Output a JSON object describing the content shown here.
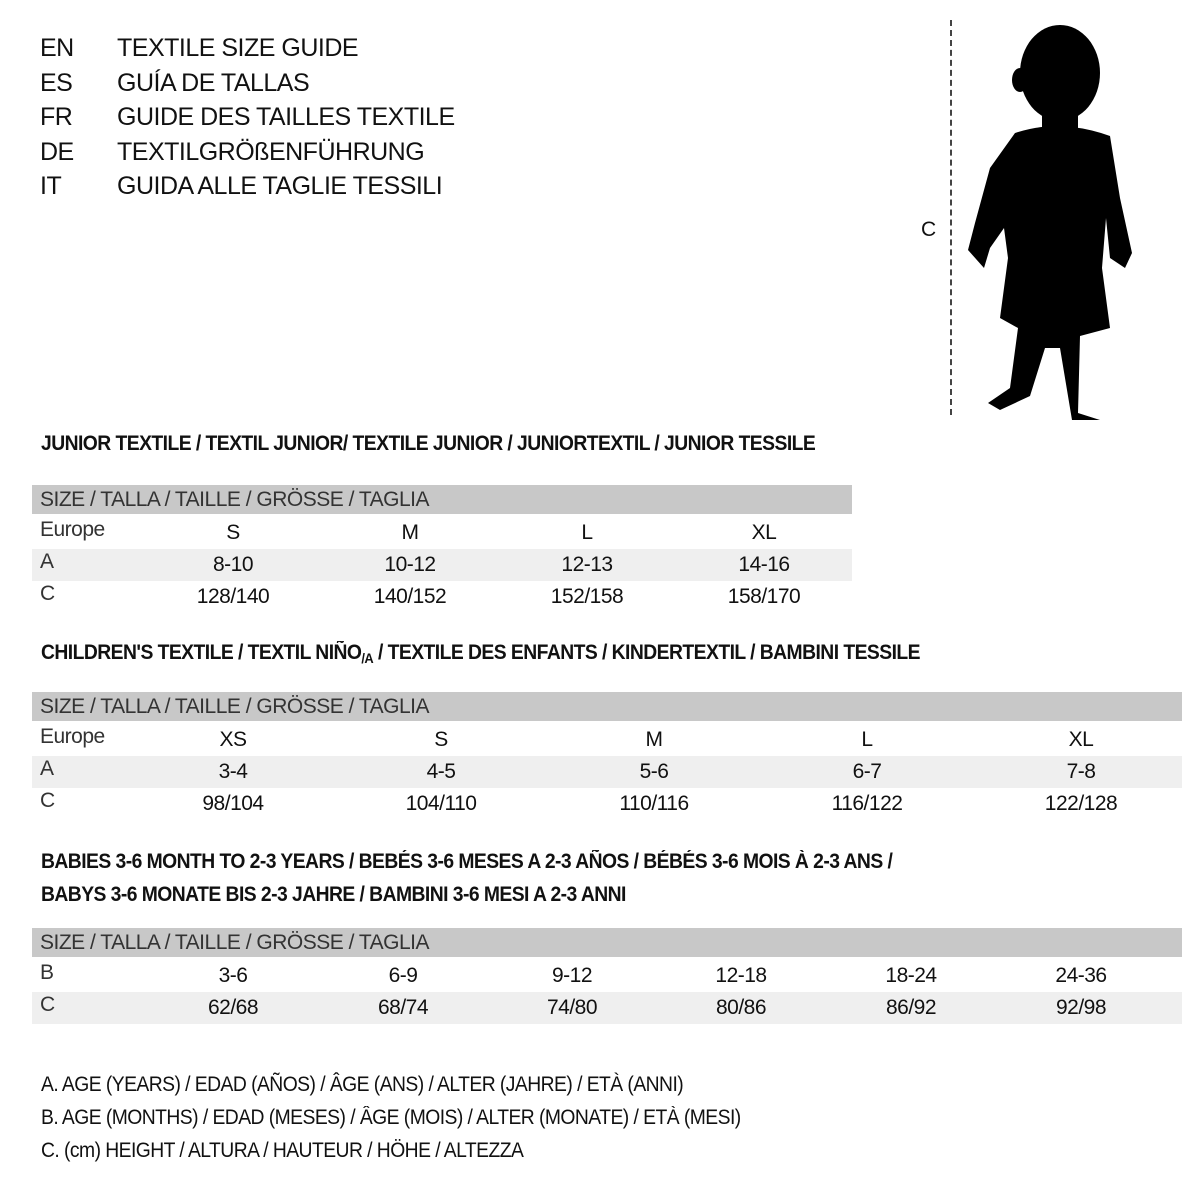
{
  "header": {
    "languages": [
      {
        "code": "EN",
        "title": "TEXTILE SIZE GUIDE"
      },
      {
        "code": "ES",
        "title": "GUÍA DE TALLAS"
      },
      {
        "code": "FR",
        "title": "GUIDE DES TAILLES TEXTILE"
      },
      {
        "code": "DE",
        "title": "TEXTILGRÖßENFÜHRUNG"
      },
      {
        "code": "IT",
        "title": "GUIDA ALLE TAGLIE TESSILI"
      }
    ]
  },
  "figure": {
    "height_label": "C",
    "icon": "child-silhouette"
  },
  "junior": {
    "title": "JUNIOR TEXTILE / TEXTIL JUNIOR/ TEXTILE JUNIOR / JUNIORTEXTIL / JUNIOR TESSILE",
    "header": "SIZE / TALLA / TAILLE / GRÖSSE / TAGLIA",
    "rows": [
      {
        "label": "Europe",
        "values": [
          "S",
          "M",
          "L",
          "XL"
        ]
      },
      {
        "label": "A",
        "values": [
          "8-10",
          "10-12",
          "12-13",
          "14-16"
        ]
      },
      {
        "label": "C",
        "values": [
          "128/140",
          "140/152",
          "152/158",
          "158/170"
        ]
      }
    ]
  },
  "children": {
    "title": "CHILDREN'S TEXTILE / TEXTIL NIÑO",
    "title_sub": "/A",
    "title_rest": " / TEXTILE DES ENFANTS / KINDERTEXTIL / BAMBINI TESSILE",
    "header": "SIZE / TALLA / TAILLE / GRÖSSE / TAGLIA",
    "rows": [
      {
        "label": "Europe",
        "values": [
          "XS",
          "S",
          "M",
          "L",
          "XL"
        ]
      },
      {
        "label": "A",
        "values": [
          "3-4",
          "4-5",
          "5-6",
          "6-7",
          "7-8"
        ]
      },
      {
        "label": "C",
        "values": [
          "98/104",
          "104/110",
          "110/116",
          "116/122",
          "122/128"
        ]
      }
    ]
  },
  "babies": {
    "title_line1": "BABIES 3-6 MONTH TO 2-3 YEARS / BEBÉS 3-6 MESES A 2-3 AÑOS / BÉBÉS 3-6 MOIS À 2-3 ANS /",
    "title_line2": "BABYS 3-6 MONATE BIS 2-3 JAHRE / BAMBINI 3-6 MESI A 2-3 ANNI",
    "header": "SIZE / TALLA / TAILLE / GRÖSSE / TAGLIA",
    "rows": [
      {
        "label": "B",
        "values": [
          "3-6",
          "6-9",
          "9-12",
          "12-18",
          "18-24",
          "24-36"
        ]
      },
      {
        "label": "C",
        "values": [
          "62/68",
          "68/74",
          "74/80",
          "80/86",
          "86/92",
          "92/98"
        ]
      }
    ]
  },
  "legend": [
    "A. AGE (YEARS) / EDAD (AÑOS) / ÂGE (ANS) / ALTER (JAHRE) / ETÀ (ANNI)",
    "B. AGE (MONTHS) / EDAD (MESES) / ÂGE (MOIS) / ALTER (MONATE) / ETÀ (MESI)",
    "C. (cm) HEIGHT / ALTURA / HAUTEUR / HÖHE / ALTEZZA"
  ]
}
